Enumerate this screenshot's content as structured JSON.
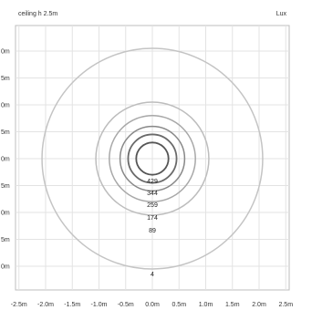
{
  "header": {
    "left": "ceiling h 2.5m",
    "right": "Lux"
  },
  "chart_data": {
    "type": "isolux",
    "xlim": [
      -2.5,
      2.5
    ],
    "ylim": [
      -2.0,
      2.0
    ],
    "x_ticks": [
      -2.5,
      -2.0,
      -1.5,
      -1.0,
      -0.5,
      0.0,
      0.5,
      1.0,
      1.5,
      2.0,
      2.5
    ],
    "x_tick_labels": [
      "-2.5m",
      "-2.0m",
      "-1.5m",
      "-1.0m",
      "-0.5m",
      "0.0m",
      "0.5m",
      "1.0m",
      "1.5m",
      "2.0m",
      "2.5m"
    ],
    "y_ticks": [
      2.0,
      1.5,
      1.0,
      0.5,
      0.0,
      -0.5,
      -1.0,
      -1.5,
      -2.0
    ],
    "y_tick_labels": [
      "0m",
      "5m",
      "0m",
      "5m",
      "0m",
      "5m",
      "0m",
      "5m",
      "0m"
    ],
    "grid": true,
    "contours": [
      {
        "lux": 429,
        "radius_m": 0.3,
        "label": "429",
        "color": "#555555"
      },
      {
        "lux": 344,
        "radius_m": 0.45,
        "label": "344",
        "color": "#6a6a6a"
      },
      {
        "lux": 259,
        "radius_m": 0.6,
        "label": "259",
        "color": "#888888"
      },
      {
        "lux": 174,
        "radius_m": 0.8,
        "label": "174",
        "color": "#a8a8a8"
      },
      {
        "lux": 89,
        "radius_m": 1.05,
        "label": "89",
        "color": "#bdbdbd"
      },
      {
        "lux": 4,
        "radius_m": 2.05,
        "label": "4",
        "color": "#c4c4c4"
      }
    ]
  }
}
